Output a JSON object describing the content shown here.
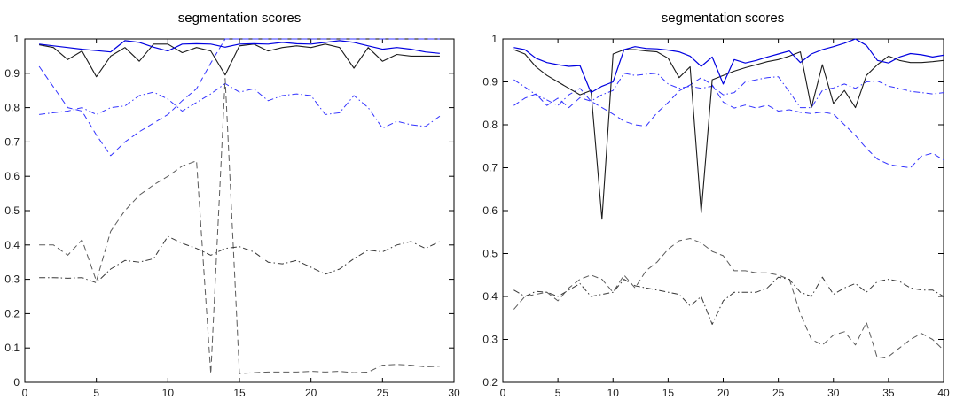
{
  "figure": {
    "background": "#ffffff",
    "axis_color": "#000000",
    "blue_solid_color": "#0000e0",
    "blue_broken_color": "#3333ff",
    "black_solid_color": "#1c1c1c",
    "black_dashed_color": "#5a5a5a",
    "black_dashdot_color": "#383838"
  },
  "chart_data": [
    {
      "type": "line",
      "title": "segmentation scores",
      "xlabel": "",
      "ylabel": "",
      "xlim": [
        0,
        30
      ],
      "ylim": [
        0,
        1
      ],
      "x_ticks": [
        0,
        5,
        10,
        15,
        20,
        25,
        30
      ],
      "y_ticks": [
        0,
        0.1,
        0.2,
        0.3,
        0.4,
        0.5,
        0.6,
        0.7,
        0.8,
        0.9,
        1
      ],
      "x_start": 1,
      "grid": false,
      "legend_position": "none",
      "series": [
        {
          "name": "blue-dashed",
          "color": "#3333ff",
          "dash": "7 4",
          "width": 1,
          "values": [
            0.92,
            0.86,
            0.8,
            0.79,
            0.72,
            0.66,
            0.7,
            0.73,
            0.755,
            0.78,
            0.82,
            0.855,
            0.93,
            1.0,
            1.0,
            1.0,
            1.0,
            1.0,
            1.0,
            1.0,
            1.0,
            1.0,
            1.0,
            1.0,
            1.0,
            1.0,
            1.0,
            1.0,
            1.0
          ]
        },
        {
          "name": "blue-dashdot",
          "color": "#3333ff",
          "dash": "7 3 1.5 3",
          "width": 1,
          "values": [
            0.78,
            0.785,
            0.79,
            0.8,
            0.78,
            0.8,
            0.805,
            0.835,
            0.845,
            0.825,
            0.79,
            0.815,
            0.84,
            0.87,
            0.845,
            0.855,
            0.82,
            0.835,
            0.84,
            0.835,
            0.78,
            0.785,
            0.835,
            0.8,
            0.74,
            0.76,
            0.75,
            0.745,
            0.775
          ]
        },
        {
          "name": "black-dashed",
          "color": "#5a5a5a",
          "dash": "7 4",
          "width": 1,
          "values": [
            0.4,
            0.4,
            0.37,
            0.415,
            0.295,
            0.44,
            0.5,
            0.545,
            0.575,
            0.6,
            0.63,
            0.645,
            0.025,
            0.885,
            0.025,
            0.028,
            0.03,
            0.03,
            0.03,
            0.032,
            0.03,
            0.032,
            0.028,
            0.03,
            0.05,
            0.052,
            0.05,
            0.045,
            0.047
          ]
        },
        {
          "name": "black-dashdot",
          "color": "#383838",
          "dash": "7 3 1.5 3",
          "width": 1,
          "values": [
            0.305,
            0.305,
            0.303,
            0.305,
            0.29,
            0.33,
            0.355,
            0.35,
            0.36,
            0.425,
            0.405,
            0.39,
            0.37,
            0.39,
            0.395,
            0.38,
            0.35,
            0.345,
            0.355,
            0.335,
            0.315,
            0.33,
            0.36,
            0.385,
            0.38,
            0.4,
            0.41,
            0.39,
            0.41
          ]
        },
        {
          "name": "black-solid",
          "color": "#1c1c1c",
          "dash": "",
          "width": 1.1,
          "values": [
            0.983,
            0.975,
            0.94,
            0.965,
            0.89,
            0.95,
            0.975,
            0.935,
            0.985,
            0.985,
            0.96,
            0.975,
            0.965,
            0.895,
            0.98,
            0.985,
            0.965,
            0.975,
            0.98,
            0.975,
            0.985,
            0.975,
            0.915,
            0.975,
            0.935,
            0.955,
            0.95,
            0.95,
            0.95
          ]
        },
        {
          "name": "blue-solid",
          "color": "#0000e0",
          "dash": "",
          "width": 1.2,
          "values": [
            0.985,
            0.98,
            0.975,
            0.97,
            0.966,
            0.962,
            0.995,
            0.99,
            0.976,
            0.965,
            0.985,
            0.986,
            0.985,
            0.976,
            0.985,
            0.986,
            0.985,
            0.99,
            0.986,
            0.985,
            0.99,
            0.995,
            0.99,
            0.98,
            0.97,
            0.975,
            0.97,
            0.962,
            0.958
          ]
        }
      ]
    },
    {
      "type": "line",
      "title": "segmentation scores",
      "xlabel": "",
      "ylabel": "",
      "xlim": [
        0,
        40
      ],
      "ylim": [
        0.2,
        1
      ],
      "x_ticks": [
        0,
        5,
        10,
        15,
        20,
        25,
        30,
        35,
        40
      ],
      "y_ticks": [
        0.2,
        0.3,
        0.4,
        0.5,
        0.6,
        0.7,
        0.8,
        0.9,
        1
      ],
      "x_start": 1,
      "grid": false,
      "legend_position": "none",
      "series": [
        {
          "name": "blue-dashed",
          "color": "#3333ff",
          "dash": "7 4",
          "width": 1,
          "values": [
            0.845,
            0.862,
            0.872,
            0.845,
            0.862,
            0.84,
            0.863,
            0.855,
            0.84,
            0.825,
            0.808,
            0.8,
            0.797,
            0.828,
            0.852,
            0.879,
            0.893,
            0.91,
            0.893,
            0.853,
            0.839,
            0.846,
            0.839,
            0.846,
            0.832,
            0.835,
            0.829,
            0.826,
            0.83,
            0.825,
            0.8,
            0.775,
            0.745,
            0.72,
            0.708,
            0.703,
            0.7,
            0.727,
            0.734,
            0.718
          ]
        },
        {
          "name": "blue-dashdot",
          "color": "#3333ff",
          "dash": "7 3 1.5 3",
          "width": 1,
          "values": [
            0.905,
            0.888,
            0.87,
            0.858,
            0.845,
            0.87,
            0.885,
            0.855,
            0.87,
            0.88,
            0.92,
            0.915,
            0.918,
            0.92,
            0.895,
            0.885,
            0.89,
            0.885,
            0.89,
            0.87,
            0.875,
            0.9,
            0.905,
            0.91,
            0.912,
            0.877,
            0.84,
            0.84,
            0.88,
            0.886,
            0.895,
            0.885,
            0.9,
            0.902,
            0.89,
            0.885,
            0.878,
            0.875,
            0.872,
            0.875
          ]
        },
        {
          "name": "black-dashed",
          "color": "#5a5a5a",
          "dash": "7 4",
          "width": 1,
          "values": [
            0.37,
            0.4,
            0.405,
            0.41,
            0.39,
            0.42,
            0.44,
            0.45,
            0.44,
            0.41,
            0.45,
            0.42,
            0.46,
            0.48,
            0.51,
            0.53,
            0.535,
            0.525,
            0.505,
            0.495,
            0.46,
            0.46,
            0.455,
            0.455,
            0.45,
            0.44,
            0.36,
            0.3,
            0.287,
            0.31,
            0.318,
            0.287,
            0.34,
            0.256,
            0.26,
            0.28,
            0.3,
            0.314,
            0.3,
            0.275
          ]
        },
        {
          "name": "black-dashdot",
          "color": "#383838",
          "dash": "7 3 1.5 3",
          "width": 1,
          "values": [
            0.415,
            0.4,
            0.412,
            0.41,
            0.4,
            0.415,
            0.43,
            0.4,
            0.405,
            0.41,
            0.44,
            0.425,
            0.42,
            0.415,
            0.41,
            0.405,
            0.378,
            0.4,
            0.335,
            0.39,
            0.41,
            0.41,
            0.41,
            0.42,
            0.445,
            0.44,
            0.41,
            0.4,
            0.445,
            0.405,
            0.42,
            0.43,
            0.41,
            0.435,
            0.44,
            0.435,
            0.42,
            0.415,
            0.415,
            0.4
          ]
        },
        {
          "name": "black-solid",
          "color": "#1c1c1c",
          "dash": "",
          "width": 1.1,
          "values": [
            0.975,
            0.965,
            0.935,
            0.915,
            0.9,
            0.885,
            0.87,
            0.88,
            0.58,
            0.965,
            0.975,
            0.975,
            0.972,
            0.97,
            0.955,
            0.91,
            0.935,
            0.595,
            0.905,
            0.915,
            0.925,
            0.933,
            0.94,
            0.947,
            0.952,
            0.96,
            0.97,
            0.84,
            0.94,
            0.85,
            0.88,
            0.84,
            0.915,
            0.94,
            0.96,
            0.95,
            0.945,
            0.945,
            0.947,
            0.95
          ]
        },
        {
          "name": "blue-solid",
          "color": "#0000e0",
          "dash": "",
          "width": 1.2,
          "values": [
            0.98,
            0.975,
            0.955,
            0.945,
            0.94,
            0.936,
            0.938,
            0.875,
            0.89,
            0.9,
            0.975,
            0.982,
            0.978,
            0.977,
            0.974,
            0.97,
            0.96,
            0.936,
            0.958,
            0.895,
            0.952,
            0.944,
            0.95,
            0.958,
            0.965,
            0.972,
            0.945,
            0.965,
            0.975,
            0.982,
            0.99,
            1.0,
            0.985,
            0.95,
            0.944,
            0.958,
            0.966,
            0.963,
            0.958,
            0.962
          ]
        }
      ]
    }
  ]
}
